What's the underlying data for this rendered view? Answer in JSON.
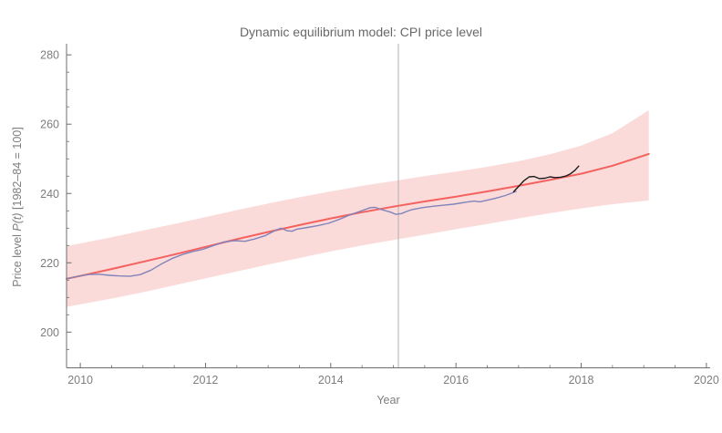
{
  "chart_data": {
    "type": "line",
    "title": "Dynamic equilibrium model: CPI price level",
    "xlabel": "Year",
    "ylabel": "Price level P(t) [1982–84 = 100]",
    "ylabel_parts": [
      "Price level ",
      "P(t)",
      " [1982–84 = 100]"
    ],
    "xlim": [
      2009.78,
      2020.06
    ],
    "ylim": [
      189.7,
      283.2
    ],
    "xticks": [
      2010,
      2012,
      2014,
      2016,
      2018,
      2020
    ],
    "xtick_labels": [
      "2010",
      "2012",
      "2014",
      "2016",
      "2018",
      "2020"
    ],
    "x_minor_step": 0.5,
    "yticks": [
      200,
      220,
      240,
      260,
      280
    ],
    "ytick_labels": [
      "200",
      "220",
      "240",
      "260",
      "280"
    ],
    "y_minor_step": 5,
    "grid": false,
    "legend": "none",
    "marker_line_x": 2015.08,
    "colors": {
      "band": "#fbdada",
      "model_line": "#f4625f",
      "observed_line": "#8084bb",
      "recent_line": "#1c1c1c",
      "marker_line": "#b0b0b0",
      "axis": "#6e6e6e",
      "tick_label": "#7e7e7e",
      "title": "#686868"
    },
    "series": [
      {
        "name": "forecast-band",
        "type": "band",
        "color": "#fbdada",
        "upper": [
          [
            2009.78,
            224.8
          ],
          [
            2010,
            225.6
          ],
          [
            2010.5,
            227.4
          ],
          [
            2011,
            229.3
          ],
          [
            2011.5,
            231.2
          ],
          [
            2012,
            233.2
          ],
          [
            2012.5,
            235.2
          ],
          [
            2013,
            237.1
          ],
          [
            2013.5,
            238.9
          ],
          [
            2014,
            240.6
          ],
          [
            2014.5,
            242.2
          ],
          [
            2015,
            243.6
          ],
          [
            2015.5,
            245.0
          ],
          [
            2016,
            246.3
          ],
          [
            2016.5,
            247.7
          ],
          [
            2017,
            249.3
          ],
          [
            2017.5,
            251.3
          ],
          [
            2018,
            253.8
          ],
          [
            2018.5,
            257.4
          ],
          [
            2019.08,
            264.0
          ]
        ],
        "lower": [
          [
            2009.78,
            207.3
          ],
          [
            2010,
            208.0
          ],
          [
            2010.5,
            209.7
          ],
          [
            2011,
            211.5
          ],
          [
            2011.5,
            213.5
          ],
          [
            2012,
            215.5
          ],
          [
            2012.5,
            217.5
          ],
          [
            2013,
            219.5
          ],
          [
            2013.5,
            221.4
          ],
          [
            2014,
            223.3
          ],
          [
            2014.5,
            225.0
          ],
          [
            2015,
            226.6
          ],
          [
            2015.5,
            228.1
          ],
          [
            2016,
            229.7
          ],
          [
            2016.5,
            231.2
          ],
          [
            2017,
            232.8
          ],
          [
            2017.5,
            234.3
          ],
          [
            2018,
            235.7
          ],
          [
            2018.5,
            236.9
          ],
          [
            2019.08,
            238.0
          ]
        ]
      },
      {
        "name": "dynamic-equilibrium-model",
        "type": "line",
        "color": "#f4625f",
        "width": 2,
        "points": [
          [
            2009.78,
            215.4
          ],
          [
            2010,
            216.2
          ],
          [
            2010.5,
            218.2
          ],
          [
            2011,
            220.3
          ],
          [
            2011.5,
            222.4
          ],
          [
            2012,
            224.6
          ],
          [
            2012.5,
            226.8
          ],
          [
            2013,
            228.9
          ],
          [
            2013.5,
            230.9
          ],
          [
            2014,
            232.8
          ],
          [
            2014.5,
            234.6
          ],
          [
            2015,
            236.2
          ],
          [
            2015.5,
            237.7
          ],
          [
            2016,
            239.1
          ],
          [
            2016.5,
            240.6
          ],
          [
            2017,
            242.2
          ],
          [
            2017.5,
            243.9
          ],
          [
            2018,
            245.7
          ],
          [
            2018.5,
            248.0
          ],
          [
            2019.08,
            251.4
          ]
        ]
      },
      {
        "name": "cpi-observed",
        "type": "line",
        "color": "#8084bb",
        "width": 1.4,
        "points": [
          [
            2009.78,
            215.4
          ],
          [
            2009.96,
            216.1
          ],
          [
            2010.13,
            216.6
          ],
          [
            2010.29,
            216.7
          ],
          [
            2010.46,
            216.4
          ],
          [
            2010.63,
            216.2
          ],
          [
            2010.79,
            216.1
          ],
          [
            2010.96,
            216.6
          ],
          [
            2011.13,
            217.9
          ],
          [
            2011.29,
            219.6
          ],
          [
            2011.46,
            221.2
          ],
          [
            2011.63,
            222.4
          ],
          [
            2011.79,
            223.2
          ],
          [
            2011.96,
            223.9
          ],
          [
            2012.13,
            225.0
          ],
          [
            2012.29,
            226.0
          ],
          [
            2012.46,
            226.4
          ],
          [
            2012.63,
            226.2
          ],
          [
            2012.79,
            226.9
          ],
          [
            2012.96,
            227.9
          ],
          [
            2013.13,
            229.5
          ],
          [
            2013.21,
            230.0
          ],
          [
            2013.29,
            229.3
          ],
          [
            2013.38,
            229.1
          ],
          [
            2013.46,
            229.7
          ],
          [
            2013.63,
            230.2
          ],
          [
            2013.79,
            230.7
          ],
          [
            2013.96,
            231.4
          ],
          [
            2014.13,
            232.5
          ],
          [
            2014.29,
            233.7
          ],
          [
            2014.46,
            234.8
          ],
          [
            2014.63,
            235.9
          ],
          [
            2014.71,
            236.0
          ],
          [
            2014.79,
            235.5
          ],
          [
            2014.96,
            234.6
          ],
          [
            2015.04,
            234.0
          ],
          [
            2015.13,
            234.2
          ],
          [
            2015.21,
            234.8
          ],
          [
            2015.29,
            235.3
          ],
          [
            2015.46,
            235.9
          ],
          [
            2015.63,
            236.3
          ],
          [
            2015.79,
            236.6
          ],
          [
            2015.96,
            236.9
          ],
          [
            2016.13,
            237.4
          ],
          [
            2016.29,
            237.8
          ],
          [
            2016.38,
            237.6
          ],
          [
            2016.46,
            237.9
          ],
          [
            2016.63,
            238.6
          ],
          [
            2016.79,
            239.4
          ],
          [
            2016.96,
            240.6
          ]
        ]
      },
      {
        "name": "cpi-recent",
        "type": "line",
        "color": "#1c1c1c",
        "width": 1.4,
        "points": [
          [
            2016.92,
            240.5
          ],
          [
            2017.0,
            242.0
          ],
          [
            2017.08,
            243.6
          ],
          [
            2017.17,
            244.8
          ],
          [
            2017.25,
            244.9
          ],
          [
            2017.33,
            244.3
          ],
          [
            2017.42,
            244.4
          ],
          [
            2017.5,
            244.8
          ],
          [
            2017.58,
            244.6
          ],
          [
            2017.67,
            244.7
          ],
          [
            2017.75,
            245.0
          ],
          [
            2017.83,
            245.7
          ],
          [
            2017.9,
            246.7
          ],
          [
            2017.96,
            247.9
          ]
        ]
      }
    ]
  }
}
